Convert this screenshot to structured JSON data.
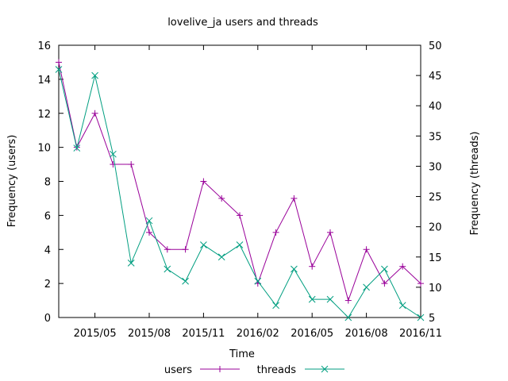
{
  "chart_data": {
    "type": "line",
    "title": "lovelive_ja users and threads",
    "xlabel": "Time",
    "ylabel_left": "Frequency (users)",
    "ylabel_right": "Frequency (threads)",
    "ylim_left": [
      0,
      16
    ],
    "ylim_right": [
      5,
      50
    ],
    "y_ticks_left": [
      0,
      2,
      4,
      6,
      8,
      10,
      12,
      14,
      16
    ],
    "y_ticks_right": [
      5,
      10,
      15,
      20,
      25,
      30,
      35,
      40,
      45,
      50
    ],
    "x_ticks": [
      {
        "label": "2015/05",
        "x": "2015-05"
      },
      {
        "label": "2015/08",
        "x": "2015-08"
      },
      {
        "label": "2015/11",
        "x": "2015-11"
      },
      {
        "label": "2016/02",
        "x": "2016-02"
      },
      {
        "label": "2016/05",
        "x": "2016-05"
      },
      {
        "label": "2016/08",
        "x": "2016-08"
      },
      {
        "label": "2016/11",
        "x": "2016-11"
      }
    ],
    "x": [
      "2015-03",
      "2015-04",
      "2015-05",
      "2015-06",
      "2015-07",
      "2015-08",
      "2015-09",
      "2015-10",
      "2015-11",
      "2015-12",
      "2016-01",
      "2016-02",
      "2016-03",
      "2016-04",
      "2016-05",
      "2016-06",
      "2016-07",
      "2016-08",
      "2016-09",
      "2016-10",
      "2016-11"
    ],
    "series": [
      {
        "name": "users",
        "axis": "left",
        "marker": "plus",
        "color": "#990099",
        "values": [
          15,
          10,
          12,
          9,
          9,
          5,
          4,
          4,
          8,
          7,
          6,
          2,
          5,
          7,
          3,
          5,
          1,
          4,
          2,
          3,
          2
        ]
      },
      {
        "name": "threads",
        "axis": "right",
        "marker": "cross",
        "color": "#009e80",
        "values": [
          46,
          33,
          45,
          32,
          14,
          21,
          13,
          11,
          17,
          15,
          17,
          11,
          7,
          13,
          8,
          8,
          5,
          10,
          13,
          7,
          5
        ]
      }
    ],
    "grid": false,
    "legend_position": "bottom"
  }
}
